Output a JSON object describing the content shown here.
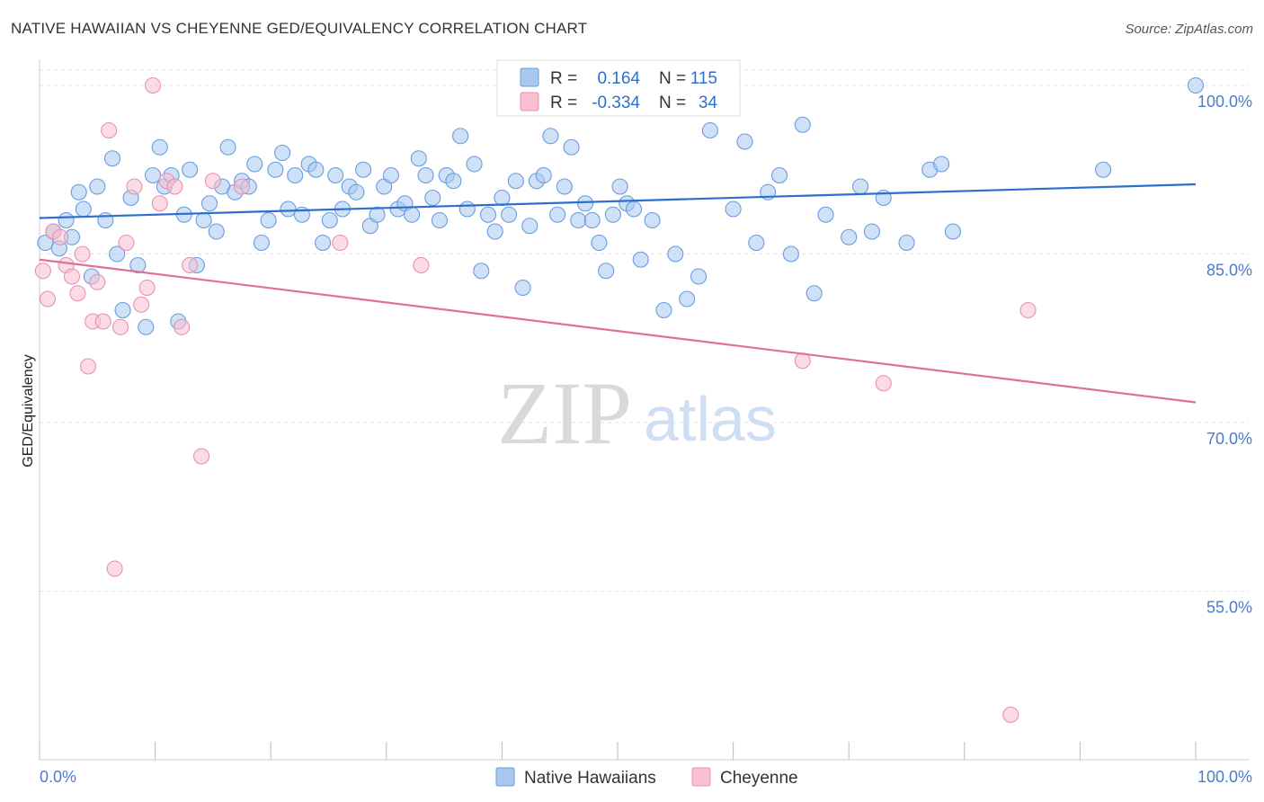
{
  "header": {
    "title": "NATIVE HAWAIIAN VS CHEYENNE GED/EQUIVALENCY CORRELATION CHART",
    "source": "Source: ZipAtlas.com"
  },
  "watermark": {
    "zip": "ZIP",
    "atlas": "atlas"
  },
  "legend": {
    "r_label": "R =",
    "n_label": "N =",
    "rows": [
      {
        "r": "0.164",
        "n": "115",
        "color": "#a8c8f0",
        "stroke": "#6a9be0"
      },
      {
        "r": "-0.334",
        "n": "34",
        "color": "#f8c0d2",
        "stroke": "#e890b0"
      }
    ]
  },
  "bottom_legend": {
    "items": [
      {
        "label": "Native Hawaiians",
        "color": "#a8c8f0",
        "stroke": "#6a9be0"
      },
      {
        "label": "Cheyenne",
        "color": "#f8c0d2",
        "stroke": "#e890b0"
      }
    ]
  },
  "chart_data": {
    "type": "scatter",
    "title": "NATIVE HAWAIIAN VS CHEYENNE GED/EQUIVALENCY CORRELATION CHART",
    "xlabel": "",
    "ylabel": "GED/Equivalency",
    "xlim": [
      0,
      100
    ],
    "ylim": [
      40,
      102
    ],
    "x_tick_labels": [
      "0.0%",
      "100.0%"
    ],
    "y_ticks": [
      55,
      70,
      85,
      100
    ],
    "y_tick_labels": [
      "55.0%",
      "70.0%",
      "85.0%",
      "100.0%"
    ],
    "grid": true,
    "legend_position": "top-center",
    "series": [
      {
        "name": "Native Hawaiians",
        "color": "#6a9be0",
        "fill": "#a8c8f0",
        "line_color": "#2e6fce",
        "trend": {
          "x": [
            0,
            100
          ],
          "y": [
            88.2,
            91.2
          ]
        },
        "x": [
          0.5,
          1.2,
          1.7,
          2.3,
          2.8,
          3.4,
          3.8,
          4.5,
          5.0,
          5.7,
          6.3,
          6.7,
          7.2,
          7.9,
          8.5,
          9.2,
          9.8,
          10.4,
          10.8,
          11.4,
          12.0,
          12.5,
          13.0,
          13.6,
          14.2,
          14.7,
          15.3,
          15.8,
          16.3,
          16.9,
          17.5,
          18.1,
          18.6,
          19.2,
          19.8,
          20.4,
          21.0,
          21.5,
          22.1,
          22.7,
          23.3,
          23.9,
          24.5,
          25.1,
          25.6,
          26.2,
          26.8,
          27.4,
          28.0,
          28.6,
          29.2,
          29.8,
          30.4,
          31.0,
          31.6,
          32.2,
          32.8,
          33.4,
          34.0,
          34.6,
          35.2,
          35.8,
          36.4,
          37.0,
          37.6,
          38.2,
          38.8,
          39.4,
          40.0,
          40.6,
          41.2,
          41.8,
          42.4,
          43.0,
          43.6,
          44.2,
          44.8,
          45.4,
          46.0,
          46.6,
          47.2,
          47.8,
          48.4,
          49.0,
          49.6,
          50.2,
          50.8,
          51.4,
          52.0,
          53.0,
          54.0,
          55.0,
          56.0,
          57.0,
          58.0,
          59.0,
          60.0,
          61.0,
          62.0,
          63.0,
          64.0,
          65.0,
          66.0,
          67.0,
          68.0,
          70.0,
          71.0,
          72.0,
          73.0,
          75.0,
          77.0,
          78.0,
          79.0,
          92.0,
          100.0
        ],
        "y": [
          86.0,
          87.0,
          85.5,
          88.0,
          86.5,
          90.5,
          89.0,
          83.0,
          91.0,
          88.0,
          93.5,
          85.0,
          80.0,
          90.0,
          84.0,
          78.5,
          92.0,
          94.5,
          91.0,
          92.0,
          79.0,
          88.5,
          92.5,
          84.0,
          88.0,
          89.5,
          87.0,
          91.0,
          94.5,
          90.5,
          91.5,
          91.0,
          93.0,
          86.0,
          88.0,
          92.5,
          94.0,
          89.0,
          92.0,
          88.5,
          93.0,
          92.5,
          86.0,
          88.0,
          92.0,
          89.0,
          91.0,
          90.5,
          92.5,
          87.5,
          88.5,
          91.0,
          92.0,
          89.0,
          89.5,
          88.5,
          93.5,
          92.0,
          90.0,
          88.0,
          92.0,
          91.5,
          95.5,
          89.0,
          93.0,
          83.5,
          88.5,
          87.0,
          90.0,
          88.5,
          91.5,
          82.0,
          87.5,
          91.5,
          92.0,
          95.5,
          88.5,
          91.0,
          94.5,
          88.0,
          89.5,
          88.0,
          86.0,
          83.5,
          88.5,
          91.0,
          89.5,
          89.0,
          84.5,
          88.0,
          80.0,
          85.0,
          81.0,
          83.0,
          96.0,
          100.0,
          89.0,
          95.0,
          86.0,
          90.5,
          92.0,
          85.0,
          96.5,
          81.5,
          88.5,
          86.5,
          91.0,
          87.0,
          90.0,
          86.0,
          92.5,
          93.0,
          87.0,
          92.5,
          100.0
        ]
      },
      {
        "name": "Cheyenne",
        "color": "#e890b0",
        "fill": "#f8c0d2",
        "line_color": "#e0709a",
        "trend": {
          "x": [
            0,
            100
          ],
          "y": [
            84.5,
            71.8
          ]
        },
        "x": [
          0.3,
          0.7,
          1.2,
          1.8,
          2.3,
          2.8,
          3.3,
          3.7,
          4.2,
          4.6,
          5.0,
          5.5,
          6.0,
          6.5,
          7.0,
          7.5,
          8.2,
          8.8,
          9.3,
          9.8,
          10.4,
          11.0,
          11.7,
          12.3,
          13.0,
          14.0,
          15.0,
          17.5,
          26.0,
          33.0,
          66.0,
          73.0,
          84.0,
          85.5
        ],
        "y": [
          83.5,
          81.0,
          87.0,
          86.5,
          84.0,
          83.0,
          81.5,
          85.0,
          75.0,
          79.0,
          82.5,
          79.0,
          96.0,
          57.0,
          78.5,
          86.0,
          91.0,
          80.5,
          82.0,
          100.0,
          89.5,
          91.5,
          91.0,
          78.5,
          84.0,
          67.0,
          91.5,
          91.0,
          86.0,
          84.0,
          75.5,
          73.5,
          44.0,
          80.0
        ]
      }
    ]
  }
}
